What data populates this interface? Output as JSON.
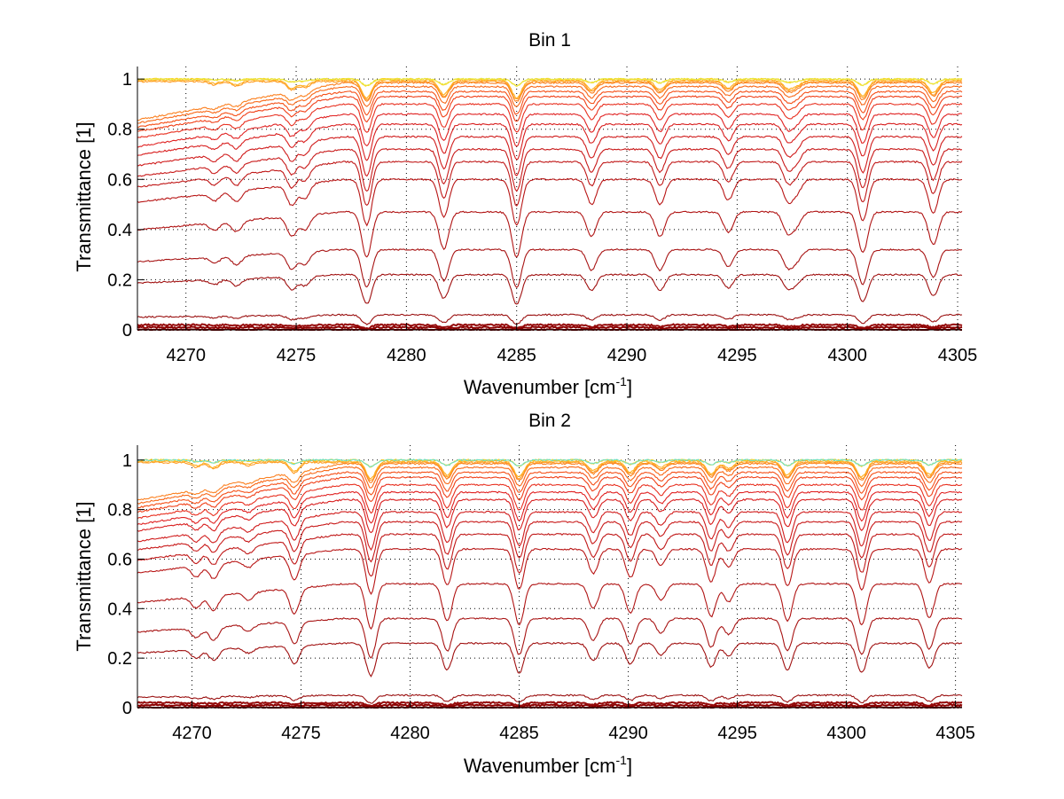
{
  "chart_data": [
    {
      "type": "line",
      "title": "Bin 1",
      "xlabel": "Wavenumber [cm",
      "xlabel_sup": "-1",
      "xlabel_end": "]",
      "ylabel": "Transmittance [1]",
      "xlim": [
        4267.8,
        4305.2
      ],
      "ylim": [
        0,
        1.05
      ],
      "xticks": [
        4270,
        4275,
        4280,
        4285,
        4290,
        4295,
        4300,
        4305
      ],
      "xtick_labels": [
        "4270",
        "4275",
        "4280",
        "4285",
        "4290",
        "4295",
        "4300",
        "4305"
      ],
      "yticks": [
        0,
        0.2,
        0.4,
        0.6,
        0.8,
        1
      ],
      "ytick_labels": [
        "0",
        "0.2",
        "0.4",
        "0.6",
        "0.8",
        "1"
      ],
      "grid": true,
      "lines": [
        {
          "center": 4271.3,
          "depth": 0.1
        },
        {
          "center": 4272.3,
          "depth": 0.14
        },
        {
          "center": 4274.8,
          "depth": 0.25
        },
        {
          "center": 4275.4,
          "depth": 0.18
        },
        {
          "center": 4278.2,
          "depth": 0.55
        },
        {
          "center": 4281.7,
          "depth": 0.45
        },
        {
          "center": 4285.0,
          "depth": 0.55
        },
        {
          "center": 4288.4,
          "depth": 0.3
        },
        {
          "center": 4291.5,
          "depth": 0.3
        },
        {
          "center": 4294.6,
          "depth": 0.25
        },
        {
          "center": 4297.3,
          "depth": 0.25
        },
        {
          "center": 4297.7,
          "depth": 0.15
        },
        {
          "center": 4300.7,
          "depth": 0.5
        },
        {
          "center": 4303.9,
          "depth": 0.4
        }
      ],
      "series_levels": [
        0.0,
        0.01,
        0.02,
        0.06,
        0.22,
        0.32,
        0.47,
        0.6,
        0.67,
        0.72,
        0.77,
        0.82,
        0.86,
        0.9,
        0.93,
        0.95,
        0.97,
        0.985,
        0.99,
        0.995,
        1.0,
        1.0
      ],
      "series_colors": [
        "#7a0000",
        "#8b0000",
        "#960a0a",
        "#9a1010",
        "#a01010",
        "#a81414",
        "#b01414",
        "#b81616",
        "#c01818",
        "#c81a1a",
        "#d01c1c",
        "#d81e1e",
        "#e02222",
        "#e83020",
        "#f04018",
        "#f55018",
        "#f86818",
        "#fb8020",
        "#fd9a20",
        "#ffb020",
        "#ffd020",
        "#e8e840"
      ]
    },
    {
      "type": "line",
      "title": "Bin 2",
      "xlabel": "Wavenumber [cm",
      "xlabel_sup": "-1",
      "xlabel_end": "]",
      "ylabel": "Transmittance [1]",
      "xlim": [
        4267.5,
        4305.3
      ],
      "ylim": [
        0,
        1.06
      ],
      "xticks": [
        4270,
        4275,
        4280,
        4285,
        4290,
        4295,
        4300,
        4305
      ],
      "xtick_labels": [
        "4270",
        "4275",
        "4280",
        "4285",
        "4290",
        "4295",
        "4300",
        "4305"
      ],
      "yticks": [
        0,
        0.2,
        0.4,
        0.6,
        0.8,
        1
      ],
      "ytick_labels": [
        "0",
        "0.2",
        "0.4",
        "0.6",
        "0.8",
        "1"
      ],
      "grid": true,
      "lines": [
        {
          "center": 4270.2,
          "depth": 0.15
        },
        {
          "center": 4271.0,
          "depth": 0.2
        },
        {
          "center": 4272.6,
          "depth": 0.1
        },
        {
          "center": 4274.7,
          "depth": 0.32
        },
        {
          "center": 4278.2,
          "depth": 0.55
        },
        {
          "center": 4281.7,
          "depth": 0.45
        },
        {
          "center": 4285.0,
          "depth": 0.5
        },
        {
          "center": 4288.4,
          "depth": 0.3
        },
        {
          "center": 4290.1,
          "depth": 0.35
        },
        {
          "center": 4291.5,
          "depth": 0.2
        },
        {
          "center": 4293.8,
          "depth": 0.4
        },
        {
          "center": 4294.6,
          "depth": 0.22
        },
        {
          "center": 4297.3,
          "depth": 0.45
        },
        {
          "center": 4300.7,
          "depth": 0.5
        },
        {
          "center": 4303.8,
          "depth": 0.42
        }
      ],
      "series_levels": [
        0.0,
        0.01,
        0.02,
        0.05,
        0.26,
        0.36,
        0.5,
        0.64,
        0.7,
        0.75,
        0.79,
        0.84,
        0.87,
        0.9,
        0.93,
        0.95,
        0.97,
        0.985,
        0.99,
        0.995,
        1.0,
        1.0
      ],
      "series_colors": [
        "#7a0000",
        "#8b0000",
        "#960a0a",
        "#9a1010",
        "#a01010",
        "#a81414",
        "#b01414",
        "#b81616",
        "#c01818",
        "#c81a1a",
        "#d01c1c",
        "#d81e1e",
        "#e02222",
        "#e83020",
        "#f04018",
        "#f55018",
        "#f86818",
        "#fb8020",
        "#fd9a20",
        "#ffb020",
        "#ffd020",
        "#70e0c0"
      ]
    }
  ]
}
